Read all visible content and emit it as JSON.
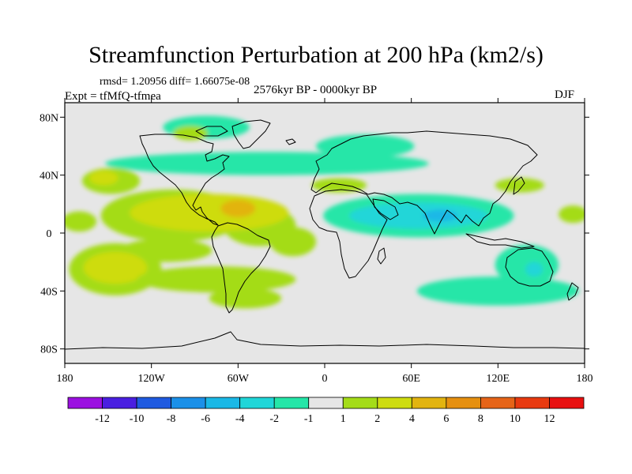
{
  "chart_data": {
    "type": "heatmap",
    "title": "Streamfunction Perturbation at 200 hPa (km2/s)",
    "subtitle_stats": "rmsd= 1.20956 diff= 1.66075e-08",
    "experiment": "Expt = tfMfQ-tfmea",
    "period": "2576kyr BP - 0000kyr BP",
    "season": "DJF",
    "x_range": [
      -180,
      180
    ],
    "y_range": [
      -90,
      90
    ],
    "x_ticks": [
      {
        "value": -180,
        "label": "180"
      },
      {
        "value": -120,
        "label": "120W"
      },
      {
        "value": -60,
        "label": "60W"
      },
      {
        "value": 0,
        "label": "0"
      },
      {
        "value": 60,
        "label": "60E"
      },
      {
        "value": 120,
        "label": "120E"
      },
      {
        "value": 180,
        "label": "180"
      }
    ],
    "y_ticks": [
      {
        "value": 80,
        "label": "80N"
      },
      {
        "value": 40,
        "label": "40N"
      },
      {
        "value": 0,
        "label": "0"
      },
      {
        "value": -40,
        "label": "40S"
      },
      {
        "value": -80,
        "label": "80S"
      }
    ],
    "colorbar": {
      "colors": [
        "#9b10e0",
        "#4a1fe0",
        "#1f5ae0",
        "#1b90e8",
        "#1ab8e6",
        "#20d6d8",
        "#25e6a8",
        "#e6e6e6",
        "#a4dc18",
        "#cedc10",
        "#e2b410",
        "#e69010",
        "#e66418",
        "#e83a10",
        "#e81010"
      ],
      "labels": [
        "-12",
        "-10",
        "-8",
        "-6",
        "-4",
        "-2",
        "-1",
        "1",
        "2",
        "4",
        "6",
        "8",
        "10",
        "12"
      ]
    },
    "regions": [
      {
        "level": "2",
        "color": "#a4dc18",
        "lon": -148,
        "lat": 36,
        "rlon": 20,
        "rlat": 9
      },
      {
        "level": "4",
        "color": "#cedc10",
        "lon": -153,
        "lat": 38,
        "rlon": 10,
        "rlat": 5
      },
      {
        "level": "2",
        "color": "#a4dc18",
        "lon": -170,
        "lat": 8,
        "rlon": 12,
        "rlat": 7
      },
      {
        "level": "2",
        "color": "#a4dc18",
        "lon": -105,
        "lat": 12,
        "rlon": 50,
        "rlat": 18
      },
      {
        "level": "2",
        "color": "#a4dc18",
        "lon": -45,
        "lat": 5,
        "rlon": 25,
        "rlat": 14
      },
      {
        "level": "4",
        "color": "#cedc10",
        "lon": -80,
        "lat": 14,
        "rlon": 55,
        "rlat": 13
      },
      {
        "level": "6",
        "color": "#e2b410",
        "lon": -60,
        "lat": 17,
        "rlon": 12,
        "rlat": 6
      },
      {
        "level": "2",
        "color": "#a4dc18",
        "lon": -110,
        "lat": -12,
        "rlon": 32,
        "rlat": 8
      },
      {
        "level": "2",
        "color": "#a4dc18",
        "lon": -22,
        "lat": -6,
        "rlon": 16,
        "rlat": 10
      },
      {
        "level": "2",
        "color": "#a4dc18",
        "lon": -145,
        "lat": -25,
        "rlon": 32,
        "rlat": 18
      },
      {
        "level": "4",
        "color": "#cedc10",
        "lon": -145,
        "lat": -24,
        "rlon": 22,
        "rlat": 11
      },
      {
        "level": "2",
        "color": "#a4dc18",
        "lon": -75,
        "lat": -32,
        "rlon": 55,
        "rlat": 9
      },
      {
        "level": "2",
        "color": "#a4dc18",
        "lon": -55,
        "lat": -45,
        "rlon": 25,
        "rlat": 7
      },
      {
        "level": "-1",
        "color": "#25e6a8",
        "lon": -40,
        "lat": 48,
        "rlon": 112,
        "rlat": 8
      },
      {
        "level": "-1",
        "color": "#25e6a8",
        "lon": -82,
        "lat": 73,
        "rlon": 30,
        "rlat": 8
      },
      {
        "level": "-1",
        "color": "#25e6a8",
        "lon": 28,
        "lat": 60,
        "rlon": 34,
        "rlat": 8
      },
      {
        "level": "2",
        "color": "#a4dc18",
        "lon": -93,
        "lat": 69,
        "rlon": 12,
        "rlat": 5
      },
      {
        "level": "2",
        "color": "#a4dc18",
        "lon": 10,
        "lat": 33,
        "rlon": 19,
        "rlat": 5
      },
      {
        "level": "-1",
        "color": "#25e6a8",
        "lon": 65,
        "lat": 12,
        "rlon": 66,
        "rlat": 15
      },
      {
        "level": "-2",
        "color": "#20d6d8",
        "lon": 65,
        "lat": 12,
        "rlon": 48,
        "rlat": 9
      },
      {
        "level": "-4",
        "color": "#1ab8e6",
        "lon": 80,
        "lat": 12,
        "rlon": 12,
        "rlat": 4
      },
      {
        "level": "2",
        "color": "#a4dc18",
        "lon": 135,
        "lat": 33,
        "rlon": 17,
        "rlat": 5
      },
      {
        "level": "2",
        "color": "#a4dc18",
        "lon": 172,
        "lat": 13,
        "rlon": 10,
        "rlat": 6
      },
      {
        "level": "-1",
        "color": "#25e6a8",
        "lon": 120,
        "lat": -40,
        "rlon": 56,
        "rlat": 10
      },
      {
        "level": "-1",
        "color": "#25e6a8",
        "lon": 140,
        "lat": -22,
        "rlon": 22,
        "rlat": 14
      },
      {
        "level": "-2",
        "color": "#20d6d8",
        "lon": 145,
        "lat": -25,
        "rlon": 6,
        "rlat": 5
      }
    ]
  }
}
